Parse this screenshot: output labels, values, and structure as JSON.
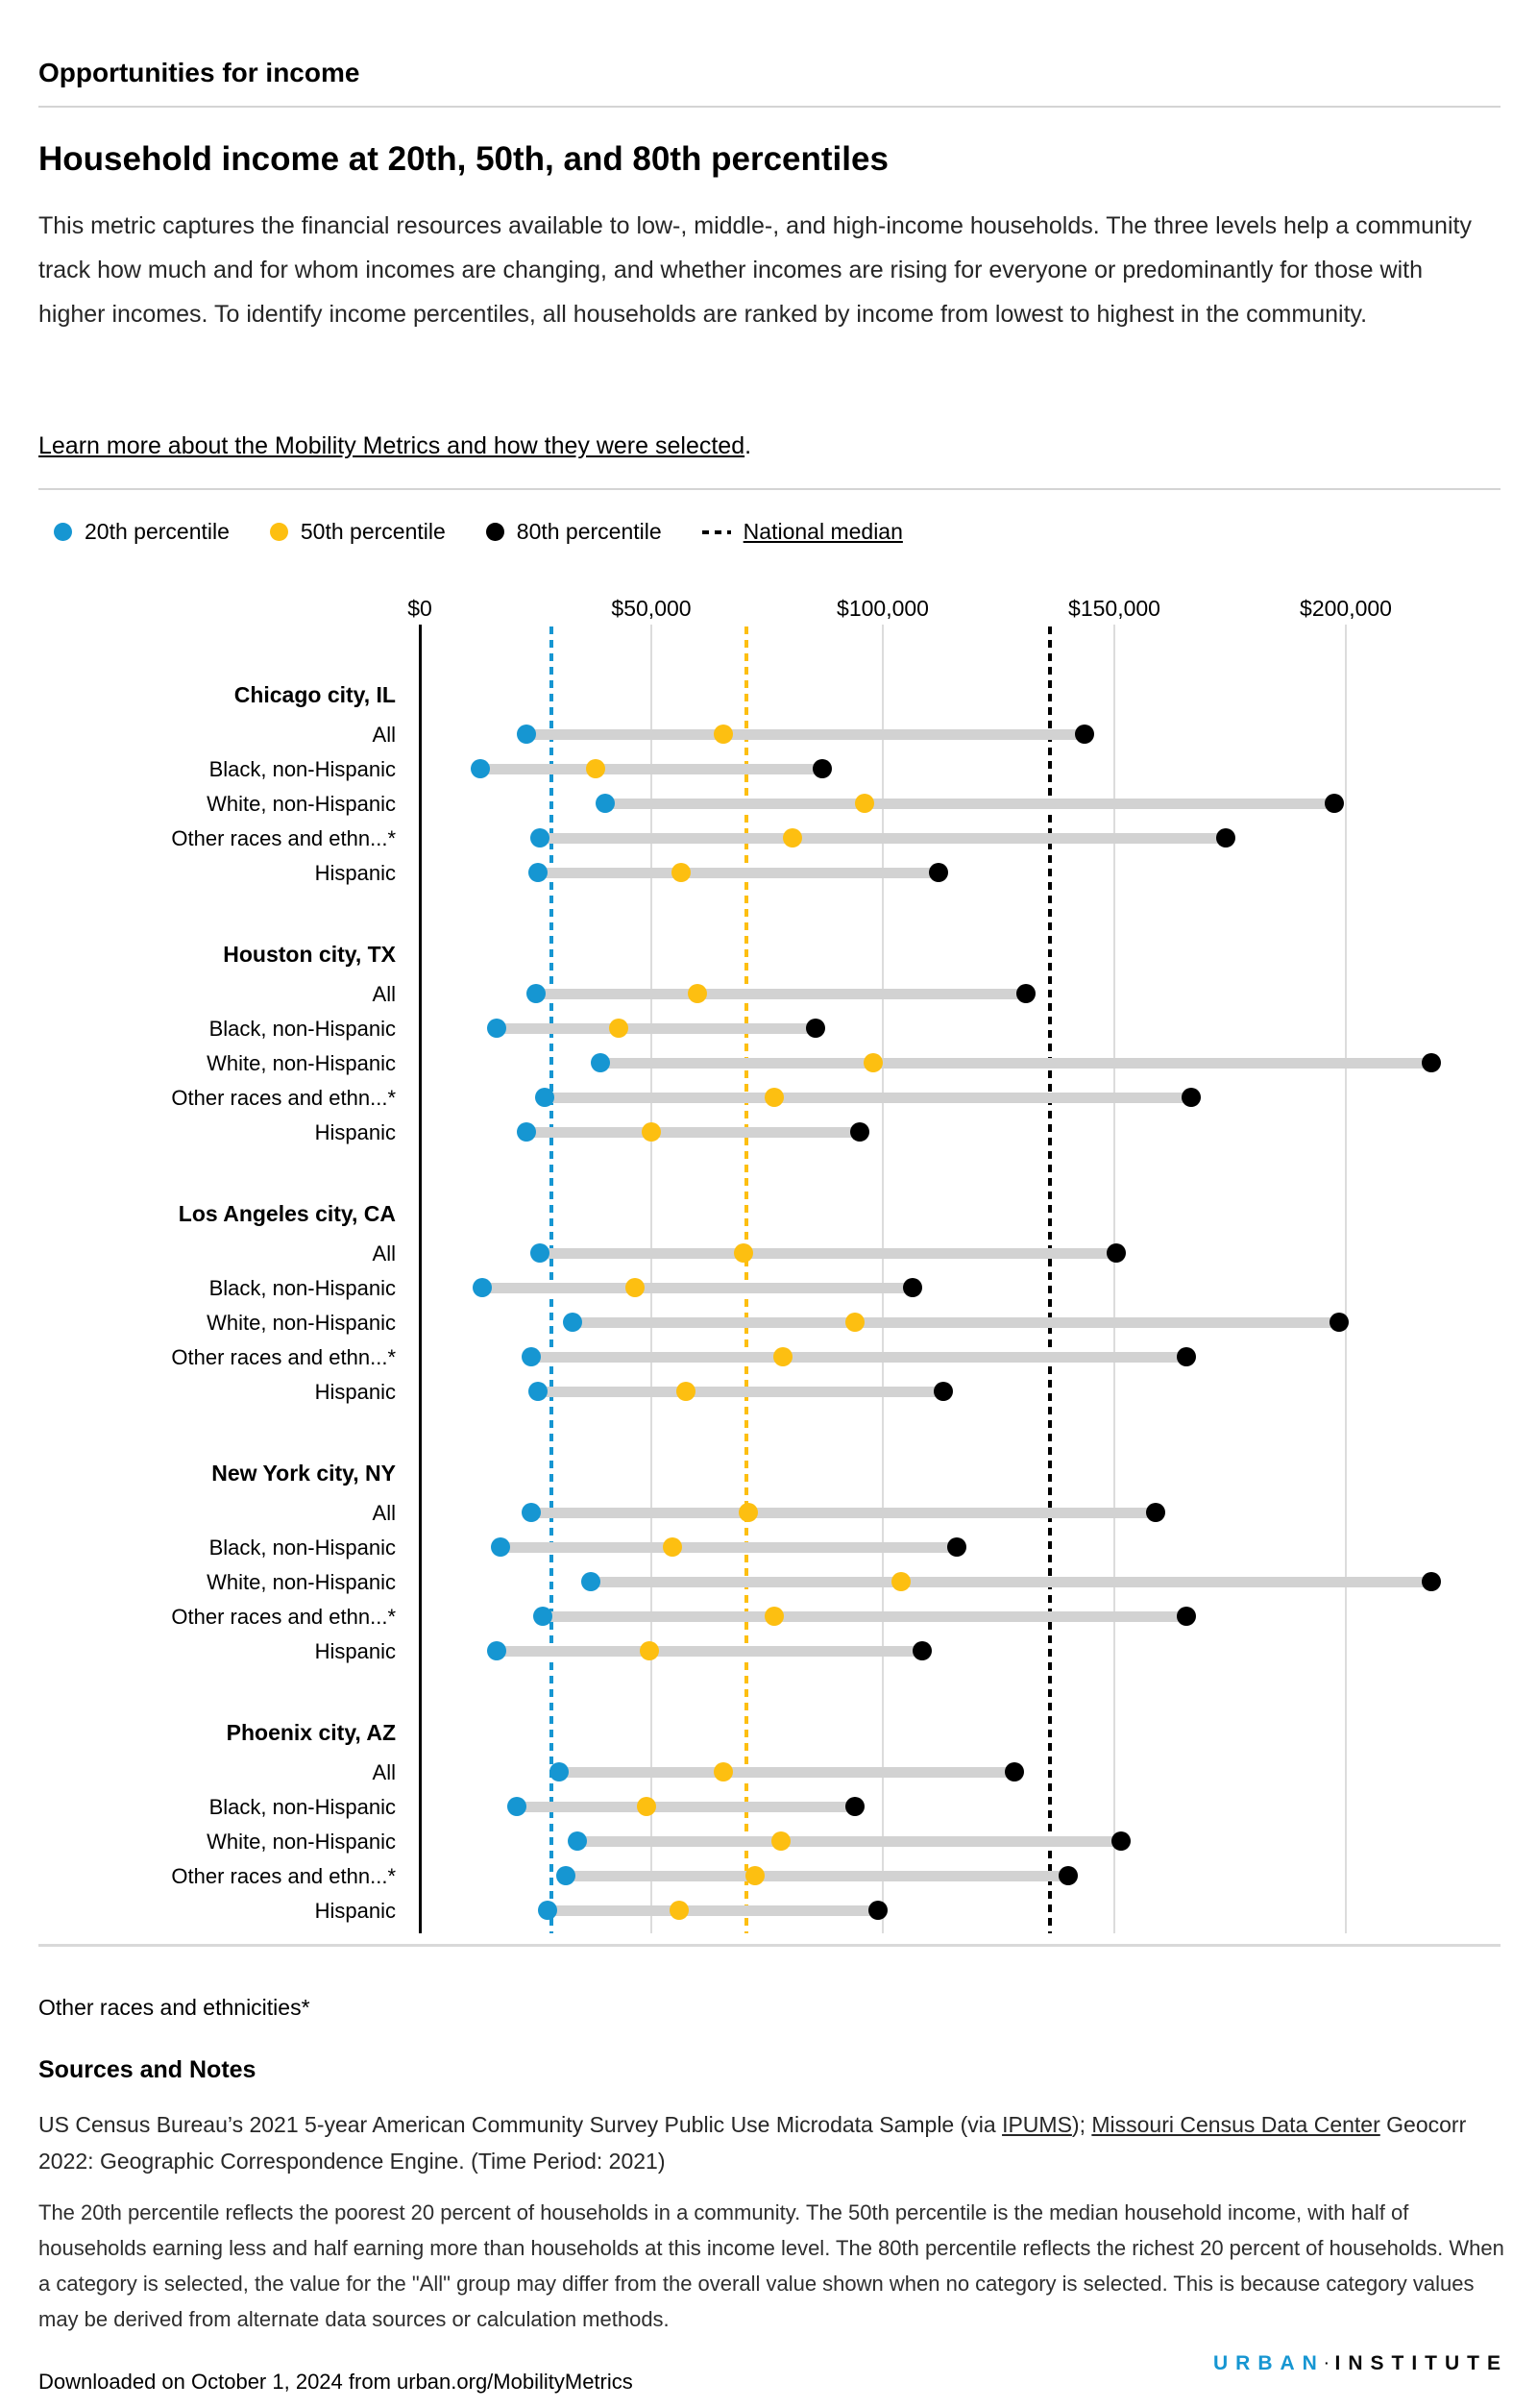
{
  "page": {
    "eyebrow": "Opportunities for income",
    "title": "Household income at 20th, 50th, and 80th percentiles",
    "description": "This metric captures the financial resources available to low-, middle-, and high-income households. The three levels help a community track how much and for whom incomes are changing, and whether incomes are rising for everyone or predominantly for those with higher incomes. To identify income percentiles, all households are ranked by income from lowest to highest in the community.",
    "learn_more_link": "Learn more about the Mobility Metrics and how they were selected",
    "learn_more_suffix": "."
  },
  "legend": {
    "items": [
      {
        "key": "p20",
        "label": "20th percentile",
        "color": "#1696d2"
      },
      {
        "key": "p50",
        "label": "50th percentile",
        "color": "#fdbf11"
      },
      {
        "key": "p80",
        "label": "80th percentile",
        "color": "#000000"
      }
    ],
    "national_median_label": "National median"
  },
  "chart_data": {
    "type": "dumbbell-dot-plot",
    "x_axis": {
      "ticks": [
        "$0",
        "$50,000",
        "$100,000",
        "$150,000",
        "$200,000"
      ],
      "tick_values": [
        0,
        50000,
        100000,
        150000,
        200000
      ],
      "max_value": 230000,
      "grid": true
    },
    "series_keys": [
      "p20",
      "p50",
      "p80"
    ],
    "colors": {
      "p20": "#1696d2",
      "p50": "#fdbf11",
      "p80": "#000000",
      "bar": "#d2d2d2"
    },
    "national_median": {
      "p20": 28500,
      "p50": 70500,
      "p80": 136000
    },
    "groups": [
      {
        "city": "Chicago city, IL",
        "rows": [
          {
            "label": "All",
            "p20": 23000,
            "p50": 65500,
            "p80": 143500
          },
          {
            "label": "Black, non-Hispanic",
            "p20": 13000,
            "p50": 38000,
            "p80": 87000
          },
          {
            "label": "White, non-Hispanic",
            "p20": 40000,
            "p50": 96000,
            "p80": 197500
          },
          {
            "label": "Other races and ethn...*",
            "p20": 26000,
            "p50": 80500,
            "p80": 174000
          },
          {
            "label": "Hispanic",
            "p20": 25500,
            "p50": 56500,
            "p80": 112000
          }
        ]
      },
      {
        "city": "Houston city, TX",
        "rows": [
          {
            "label": "All",
            "p20": 25000,
            "p50": 60000,
            "p80": 131000
          },
          {
            "label": "Black, non-Hispanic",
            "p20": 16500,
            "p50": 43000,
            "p80": 85500
          },
          {
            "label": "White, non-Hispanic",
            "p20": 39000,
            "p50": 98000,
            "p80": 218500
          },
          {
            "label": "Other races and ethn...*",
            "p20": 27000,
            "p50": 76500,
            "p80": 166500
          },
          {
            "label": "Hispanic",
            "p20": 23000,
            "p50": 50000,
            "p80": 95000
          }
        ]
      },
      {
        "city": "Los Angeles city, CA",
        "rows": [
          {
            "label": "All",
            "p20": 26000,
            "p50": 70000,
            "p80": 150500
          },
          {
            "label": "Black, non-Hispanic",
            "p20": 13500,
            "p50": 46500,
            "p80": 106500
          },
          {
            "label": "White, non-Hispanic",
            "p20": 33000,
            "p50": 94000,
            "p80": 198500
          },
          {
            "label": "Other races and ethn...*",
            "p20": 24000,
            "p50": 78500,
            "p80": 165500
          },
          {
            "label": "Hispanic",
            "p20": 25500,
            "p50": 57500,
            "p80": 113000
          }
        ]
      },
      {
        "city": "New York city, NY",
        "rows": [
          {
            "label": "All",
            "p20": 24000,
            "p50": 71000,
            "p80": 159000
          },
          {
            "label": "Black, non-Hispanic",
            "p20": 17500,
            "p50": 54500,
            "p80": 116000
          },
          {
            "label": "White, non-Hispanic",
            "p20": 37000,
            "p50": 104000,
            "p80": 218500
          },
          {
            "label": "Other races and ethn...*",
            "p20": 26500,
            "p50": 76500,
            "p80": 165500
          },
          {
            "label": "Hispanic",
            "p20": 16500,
            "p50": 49500,
            "p80": 108500
          }
        ]
      },
      {
        "city": "Phoenix city, AZ",
        "rows": [
          {
            "label": "All",
            "p20": 30000,
            "p50": 65500,
            "p80": 128500
          },
          {
            "label": "Black, non-Hispanic",
            "p20": 21000,
            "p50": 49000,
            "p80": 94000
          },
          {
            "label": "White, non-Hispanic",
            "p20": 34000,
            "p50": 78000,
            "p80": 151500
          },
          {
            "label": "Other races and ethn...*",
            "p20": 31500,
            "p50": 72500,
            "p80": 140000
          },
          {
            "label": "Hispanic",
            "p20": 27500,
            "p50": 56000,
            "p80": 99000
          }
        ]
      }
    ]
  },
  "footnote": "Other races and ethnicities*",
  "sources": {
    "heading": "Sources and Notes",
    "segments": [
      {
        "text": "US Census Bureau’s 2021 5-year American Community Survey Public Use Microdata Sample (via ",
        "link": false
      },
      {
        "text": "IPUMS",
        "link": true
      },
      {
        "text": "); ",
        "link": false
      },
      {
        "text": "Missouri Census Data Center",
        "link": true
      },
      {
        "text": " Geocorr 2022: Geographic Correspondence Engine. (Time Period: 2021)",
        "link": false
      }
    ],
    "notes": "The 20th percentile reflects the poorest 20 percent of households in a community. The 50th percentile is the median household income, with half of households earning less and half earning more than households at this income level. The 80th percentile reflects the richest 20 percent of households. When a category is selected, the value for the \"All\" group may differ from the overall value shown when no category is selected. This is because category values may be derived from alternate data sources or calculation methods."
  },
  "footer": {
    "downloaded": "Downloaded on October 1, 2024 from urban.org/MobilityMetrics",
    "logo": {
      "first": "URBAN",
      "separator": "·",
      "second": "INSTITUTE",
      "accent": "#1696d2"
    }
  }
}
